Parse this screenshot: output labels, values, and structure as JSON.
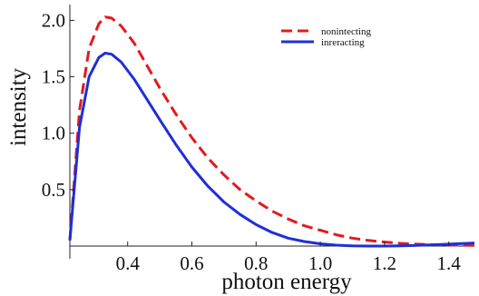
{
  "chart_data": {
    "type": "line",
    "title": "",
    "xlabel": "photon energy",
    "ylabel": "intensity",
    "xlim": [
      0.22,
      1.48
    ],
    "ylim": [
      0,
      2.1
    ],
    "x_ticks": [
      {
        "value": 0.4,
        "label": "0.4"
      },
      {
        "value": 0.6,
        "label": "0.6"
      },
      {
        "value": 0.8,
        "label": "0.8"
      },
      {
        "value": 1.0,
        "label": "1.0"
      },
      {
        "value": 1.2,
        "label": "1.2"
      },
      {
        "value": 1.4,
        "label": "1.4"
      }
    ],
    "y_ticks": [
      {
        "value": 0.5,
        "label": "0.5"
      },
      {
        "value": 1.0,
        "label": "1.0"
      },
      {
        "value": 1.5,
        "label": "1.5"
      },
      {
        "value": 2.0,
        "label": "2.0"
      }
    ],
    "grid": false,
    "legend_position": "top-right",
    "series": [
      {
        "name": "nonintecting",
        "color": "#e41a1c",
        "dash": "dashed",
        "x": [
          0.22,
          0.25,
          0.28,
          0.31,
          0.33,
          0.35,
          0.38,
          0.42,
          0.46,
          0.5,
          0.55,
          0.6,
          0.65,
          0.7,
          0.75,
          0.8,
          0.85,
          0.9,
          0.95,
          1.0,
          1.05,
          1.1,
          1.15,
          1.2,
          1.25,
          1.3,
          1.35,
          1.4,
          1.45,
          1.48
        ],
        "y": [
          0.05,
          1.2,
          1.75,
          1.97,
          2.03,
          2.02,
          1.95,
          1.8,
          1.6,
          1.4,
          1.17,
          0.96,
          0.78,
          0.63,
          0.5,
          0.4,
          0.31,
          0.24,
          0.18,
          0.14,
          0.1,
          0.07,
          0.05,
          0.035,
          0.024,
          0.017,
          0.012,
          0.009,
          0.007,
          0.006
        ]
      },
      {
        "name": "inreracting",
        "color": "#1f2fd6",
        "dash": "solid",
        "x": [
          0.22,
          0.25,
          0.28,
          0.31,
          0.33,
          0.35,
          0.38,
          0.42,
          0.46,
          0.5,
          0.55,
          0.6,
          0.65,
          0.7,
          0.75,
          0.8,
          0.85,
          0.9,
          0.95,
          1.0,
          1.05,
          1.1,
          1.15,
          1.2,
          1.25,
          1.3,
          1.35,
          1.4,
          1.45,
          1.48
        ],
        "y": [
          0.05,
          1.05,
          1.5,
          1.67,
          1.71,
          1.7,
          1.63,
          1.48,
          1.3,
          1.12,
          0.9,
          0.7,
          0.53,
          0.39,
          0.28,
          0.19,
          0.12,
          0.07,
          0.04,
          0.02,
          0.008,
          0.002,
          0.0,
          0.0,
          0.002,
          0.006,
          0.011,
          0.017,
          0.023,
          0.027
        ]
      }
    ]
  }
}
